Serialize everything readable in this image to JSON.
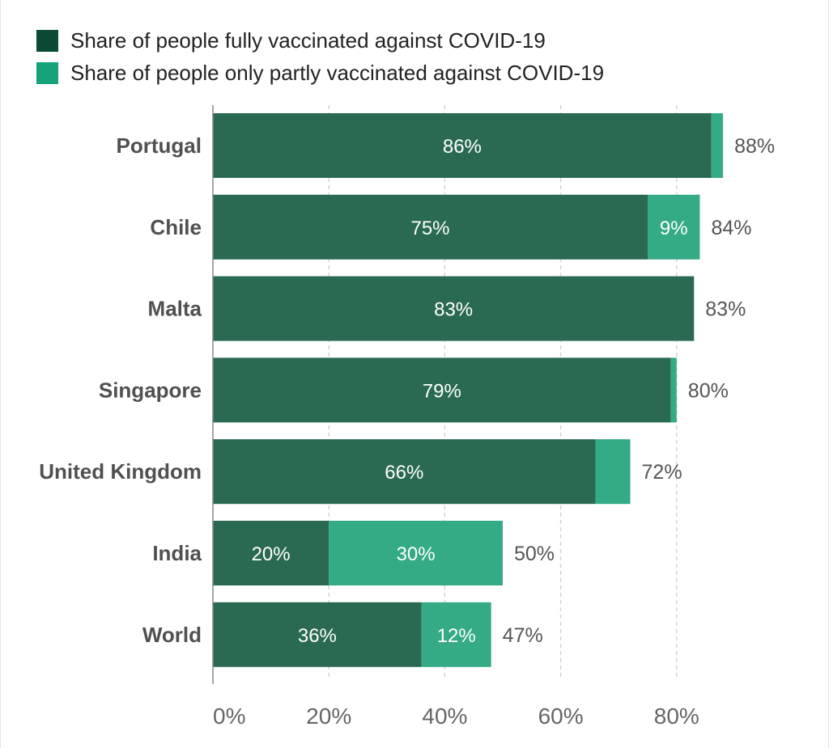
{
  "legend": {
    "fully_label": "Share of people fully vaccinated against COVID-19",
    "partly_label": "Share of people only partly vaccinated against COVID-19"
  },
  "colors": {
    "fully": "#2a6a52",
    "partly": "#34aa86",
    "legend_fully": "#0b4a36",
    "legend_partly": "#15a27a"
  },
  "chart_data": {
    "type": "bar",
    "orientation": "horizontal",
    "stacked": true,
    "categories": [
      "Portugal",
      "Chile",
      "Malta",
      "Singapore",
      "United Kingdom",
      "India",
      "World"
    ],
    "series": [
      {
        "name": "Share of people fully vaccinated against COVID-19",
        "values": [
          86,
          75,
          83,
          79,
          66,
          20,
          36
        ],
        "labels": [
          "86%",
          "75%",
          "83%",
          "79%",
          "66%",
          "20%",
          "36%"
        ]
      },
      {
        "name": "Share of people only partly vaccinated against COVID-19",
        "values": [
          2,
          9,
          0,
          1,
          6,
          30,
          12
        ],
        "labels": [
          "",
          "9%",
          "",
          "",
          "",
          "30%",
          "12%"
        ]
      }
    ],
    "totals": [
      "88%",
      "84%",
      "83%",
      "80%",
      "72%",
      "50%",
      "47%"
    ],
    "total_values": [
      88,
      84,
      83,
      80,
      72,
      50,
      47
    ],
    "x_ticks": [
      {
        "value": 0,
        "label": "0%"
      },
      {
        "value": 20,
        "label": "20%"
      },
      {
        "value": 40,
        "label": "40%"
      },
      {
        "value": 60,
        "label": "60%"
      },
      {
        "value": 80,
        "label": "80%"
      }
    ],
    "xlim": [
      0,
      88
    ],
    "grid": "vertical dashed",
    "legend_position": "top-left"
  }
}
